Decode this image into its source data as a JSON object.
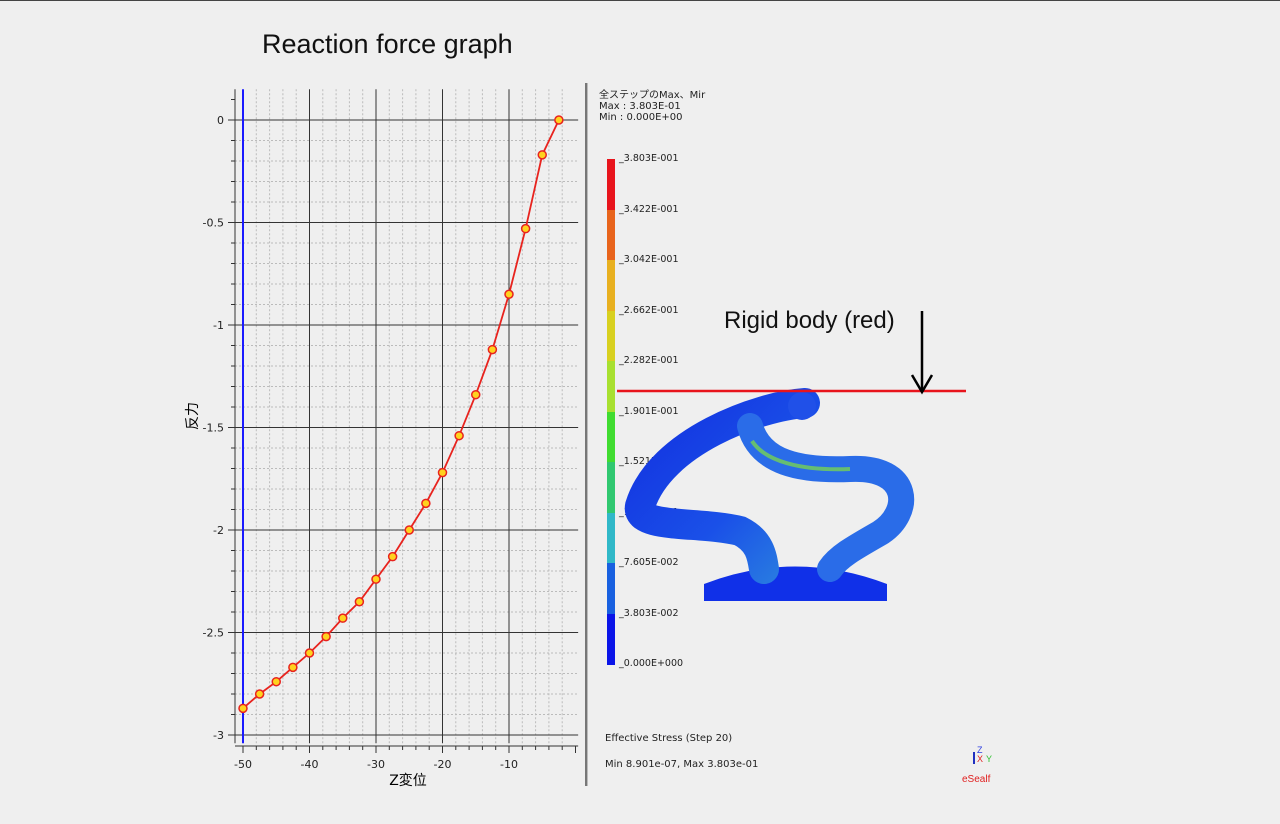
{
  "title": "Reaction force graph",
  "annotation": "Rigid body (red)",
  "chart_data": {
    "type": "line",
    "title": "",
    "xlabel": "Z変位",
    "ylabel": "反力",
    "xlim": [
      -50,
      1
    ],
    "ylim": [
      -3.04,
      0.15
    ],
    "xticks": [
      -50,
      -40,
      -30,
      -20,
      -10
    ],
    "xtick_labels": [
      "-50",
      "-40",
      "-30",
      "-20",
      "-10"
    ],
    "yticks": [
      0,
      -0.5,
      -1,
      -1.5,
      -2,
      -2.5,
      -3
    ],
    "ytick_labels": [
      "0",
      "-0.5",
      "-1",
      "-1.5",
      "-2",
      "-2.5",
      "-3"
    ],
    "grid": true,
    "series": [
      {
        "color": "#e8231e",
        "marker_color": "#ffd21e",
        "x": [
          -50,
          -47.5,
          -45,
          -42.5,
          -40,
          -37.5,
          -35,
          -32.5,
          -30,
          -27.5,
          -25,
          -22.5,
          -20,
          -17.5,
          -15,
          -12.5,
          -10,
          -7.5,
          -5,
          -2.5
        ],
        "y": [
          -2.87,
          -2.8,
          -2.74,
          -2.67,
          -2.6,
          -2.52,
          -2.43,
          -2.35,
          -2.24,
          -2.13,
          -2.0,
          -1.87,
          -1.72,
          -1.54,
          -1.34,
          -1.12,
          -0.85,
          -0.53,
          -0.17,
          0.0
        ]
      }
    ],
    "vertical_line": {
      "x": -50,
      "color": "#1a1aff"
    }
  },
  "legend": {
    "header": "全ステップのMax、Mir",
    "max": "Max : 3.803E-01",
    "min": "Min : 0.000E+00",
    "labels": [
      "3.803E-001",
      "3.422E-001",
      "3.042E-001",
      "2.662E-001",
      "2.282E-001",
      "1.901E-001",
      "1.521E-001",
      "1.141E-001",
      "7.605E-002",
      "3.803E-002",
      "0.000E+000"
    ],
    "colors": [
      "#e8141c",
      "#e8641c",
      "#e8b020",
      "#d8d020",
      "#a8e030",
      "#40dc30",
      "#30c870",
      "#30b8c8",
      "#1860e0",
      "#0a14e8"
    ]
  },
  "footer": {
    "result": "Effective Stress (Step 20)",
    "range": "Min 8.901e-07, Max 3.803e-01",
    "brand": "eSealf",
    "axes": {
      "z": "Z",
      "x": "X",
      "y": "Y"
    }
  },
  "rigid_body_color": "#e8141c"
}
